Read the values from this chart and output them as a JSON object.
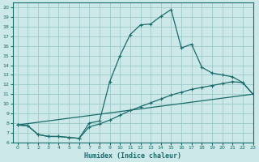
{
  "title": "",
  "xlabel": "Humidex (Indice chaleur)",
  "ylabel": "",
  "bg_color": "#cce8e8",
  "grid_color": "#9dc8c8",
  "line_color": "#1a6b6b",
  "xlim": [
    -0.5,
    23
  ],
  "ylim": [
    6,
    20.5
  ],
  "xticks": [
    0,
    1,
    2,
    3,
    4,
    5,
    6,
    7,
    8,
    9,
    10,
    11,
    12,
    13,
    14,
    15,
    16,
    17,
    18,
    19,
    20,
    21,
    22,
    23
  ],
  "yticks": [
    6,
    7,
    8,
    9,
    10,
    11,
    12,
    13,
    14,
    15,
    16,
    17,
    18,
    19,
    20
  ],
  "curve1_x": [
    0,
    1,
    2,
    3,
    4,
    5,
    6,
    7,
    8,
    9,
    10,
    11,
    12,
    13,
    14,
    15,
    16,
    17,
    18,
    19,
    20,
    21,
    22,
    23
  ],
  "curve1_y": [
    7.8,
    7.7,
    6.8,
    6.6,
    6.6,
    6.5,
    6.4,
    8.0,
    8.2,
    12.3,
    15.0,
    17.2,
    18.2,
    18.3,
    19.1,
    19.8,
    15.8,
    16.2,
    13.8,
    13.2,
    13.0,
    12.8,
    12.2,
    11.0
  ],
  "curve2_x": [
    0,
    1,
    2,
    3,
    4,
    5,
    6,
    7,
    8,
    9,
    10,
    11,
    12,
    13,
    14,
    15,
    16,
    17,
    18,
    19,
    20,
    21,
    22,
    23
  ],
  "curve2_y": [
    7.8,
    7.7,
    6.8,
    6.6,
    6.6,
    6.5,
    6.4,
    7.6,
    7.9,
    8.3,
    8.8,
    9.3,
    9.7,
    10.1,
    10.5,
    10.9,
    11.2,
    11.5,
    11.7,
    11.9,
    12.1,
    12.3,
    12.2,
    11.0
  ],
  "curve3_x": [
    0,
    23
  ],
  "curve3_y": [
    7.8,
    11.0
  ]
}
